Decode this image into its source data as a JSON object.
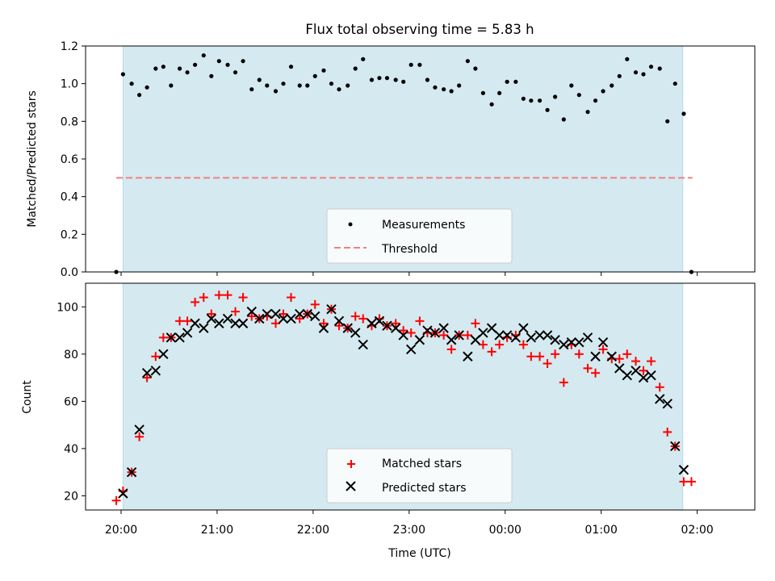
{
  "chart_data": [
    {
      "type": "scatter",
      "title": "Flux total observing time = 5.83 h",
      "ylabel": "Matched/Predicted stars",
      "ylim": [
        0.0,
        1.2
      ],
      "yticks": [
        "0.0",
        "0.2",
        "0.4",
        "0.6",
        "0.8",
        "1.0",
        "1.2"
      ],
      "x_unit": "hours since 20:00 UTC",
      "xlim": [
        -0.37,
        6.6
      ],
      "observing_window": [
        0.02,
        5.85
      ],
      "colors": {
        "window": "#d4eaf0",
        "window_edge": "#b9dce4",
        "measurements": "#000000",
        "threshold": "#f08080"
      },
      "legend": {
        "position": "lower-center",
        "entries": [
          "Measurements",
          "Threshold"
        ]
      },
      "threshold": {
        "name": "Threshold",
        "y": 0.5,
        "x_range": [
          -0.05,
          5.95
        ],
        "style": "dashed"
      },
      "series": [
        {
          "name": "Measurements",
          "marker": "dot",
          "x": [
            -0.05,
            0.02,
            0.11,
            0.19,
            0.27,
            0.36,
            0.44,
            0.52,
            0.61,
            0.69,
            0.77,
            0.86,
            0.94,
            1.02,
            1.11,
            1.19,
            1.27,
            1.36,
            1.44,
            1.52,
            1.61,
            1.69,
            1.77,
            1.86,
            1.94,
            2.02,
            2.11,
            2.19,
            2.27,
            2.36,
            2.44,
            2.52,
            2.61,
            2.69,
            2.77,
            2.86,
            2.94,
            3.02,
            3.11,
            3.19,
            3.27,
            3.36,
            3.44,
            3.52,
            3.61,
            3.69,
            3.77,
            3.86,
            3.94,
            4.02,
            4.11,
            4.19,
            4.27,
            4.36,
            4.44,
            4.52,
            4.61,
            4.69,
            4.77,
            4.86,
            4.94,
            5.02,
            5.11,
            5.19,
            5.27,
            5.36,
            5.44,
            5.52,
            5.61,
            5.69,
            5.77,
            5.86,
            5.94
          ],
          "y": [
            0.0,
            1.05,
            1.0,
            0.94,
            0.98,
            1.08,
            1.09,
            0.99,
            1.08,
            1.06,
            1.1,
            1.15,
            1.04,
            1.12,
            1.1,
            1.06,
            1.12,
            0.97,
            1.02,
            0.99,
            0.96,
            1.0,
            1.09,
            0.99,
            0.99,
            1.04,
            1.07,
            1.0,
            0.97,
            0.99,
            1.08,
            1.13,
            1.02,
            1.03,
            1.03,
            1.02,
            1.01,
            1.1,
            1.1,
            1.02,
            0.98,
            0.97,
            0.96,
            0.99,
            1.12,
            1.08,
            0.95,
            0.89,
            0.95,
            1.01,
            1.01,
            0.92,
            0.91,
            0.91,
            0.86,
            0.93,
            0.81,
            0.99,
            0.94,
            0.85,
            0.91,
            0.96,
            0.99,
            1.04,
            1.13,
            1.06,
            1.05,
            1.09,
            1.08,
            0.8,
            1.0,
            0.84,
            0.0
          ]
        }
      ]
    },
    {
      "type": "scatter",
      "xlabel": "Time (UTC)",
      "ylabel": "Count",
      "ylim": [
        14,
        110
      ],
      "yticks": [
        "20",
        "40",
        "60",
        "80",
        "100"
      ],
      "xticks": [
        "20:00",
        "21:00",
        "22:00",
        "23:00",
        "00:00",
        "01:00",
        "02:00"
      ],
      "x_unit": "hours since 20:00 UTC",
      "xlim": [
        -0.37,
        6.6
      ],
      "observing_window": [
        0.02,
        5.85
      ],
      "colors": {
        "window": "#d4eaf0",
        "window_edge": "#b9dce4",
        "matched": "#ff0000",
        "predicted": "#000000"
      },
      "legend": {
        "position": "lower-center",
        "entries": [
          "Matched stars",
          "Predicted stars"
        ]
      },
      "series": [
        {
          "name": "Matched stars",
          "marker": "plus",
          "x": [
            -0.05,
            0.02,
            0.11,
            0.19,
            0.27,
            0.36,
            0.44,
            0.52,
            0.61,
            0.69,
            0.77,
            0.86,
            0.94,
            1.02,
            1.11,
            1.19,
            1.27,
            1.36,
            1.44,
            1.52,
            1.61,
            1.69,
            1.77,
            1.86,
            1.94,
            2.02,
            2.11,
            2.19,
            2.27,
            2.36,
            2.44,
            2.52,
            2.61,
            2.69,
            2.77,
            2.86,
            2.94,
            3.02,
            3.11,
            3.19,
            3.27,
            3.36,
            3.44,
            3.52,
            3.61,
            3.69,
            3.77,
            3.86,
            3.94,
            4.02,
            4.11,
            4.19,
            4.27,
            4.36,
            4.44,
            4.52,
            4.61,
            4.69,
            4.77,
            4.86,
            4.94,
            5.02,
            5.11,
            5.19,
            5.27,
            5.36,
            5.44,
            5.52,
            5.61,
            5.69,
            5.77,
            5.86,
            5.94
          ],
          "y": [
            18,
            22,
            30,
            45,
            70,
            79,
            87,
            87,
            94,
            94,
            102,
            104,
            97,
            105,
            105,
            98,
            104,
            96,
            95,
            96,
            93,
            97,
            104,
            95,
            97,
            101,
            93,
            99,
            92,
            91,
            96,
            95,
            92,
            95,
            92,
            93,
            90,
            89,
            94,
            89,
            89,
            88,
            82,
            88,
            88,
            93,
            84,
            81,
            84,
            87,
            88,
            84,
            79,
            79,
            76,
            80,
            68,
            84,
            80,
            74,
            72,
            82,
            78,
            78,
            80,
            77,
            73,
            77,
            66,
            47,
            41,
            26,
            26
          ]
        },
        {
          "name": "Predicted stars",
          "marker": "x",
          "x": [
            0.02,
            0.11,
            0.19,
            0.27,
            0.36,
            0.44,
            0.52,
            0.61,
            0.69,
            0.77,
            0.86,
            0.94,
            1.02,
            1.11,
            1.19,
            1.27,
            1.36,
            1.44,
            1.52,
            1.61,
            1.69,
            1.77,
            1.86,
            1.94,
            2.02,
            2.11,
            2.19,
            2.27,
            2.36,
            2.44,
            2.52,
            2.61,
            2.69,
            2.77,
            2.86,
            2.94,
            3.02,
            3.11,
            3.19,
            3.27,
            3.36,
            3.44,
            3.52,
            3.61,
            3.69,
            3.77,
            3.86,
            3.94,
            4.02,
            4.11,
            4.19,
            4.27,
            4.36,
            4.44,
            4.52,
            4.61,
            4.69,
            4.77,
            4.86,
            4.94,
            5.02,
            5.11,
            5.19,
            5.27,
            5.36,
            5.44,
            5.52,
            5.61,
            5.69,
            5.77,
            5.86
          ],
          "y": [
            21,
            30,
            48,
            72,
            73,
            80,
            87,
            87,
            89,
            93,
            91,
            95,
            93,
            95,
            93,
            93,
            98,
            95,
            97,
            97,
            95,
            95,
            97,
            97,
            96,
            91,
            99,
            94,
            91,
            89,
            84,
            93,
            94,
            92,
            91,
            88,
            82,
            86,
            90,
            89,
            91,
            86,
            88,
            79,
            86,
            89,
            91,
            88,
            88,
            87,
            91,
            87,
            88,
            88,
            86,
            84,
            85,
            85,
            87,
            79,
            85,
            79,
            74,
            71,
            73,
            70,
            71,
            61,
            59,
            41,
            31
          ]
        }
      ]
    }
  ]
}
